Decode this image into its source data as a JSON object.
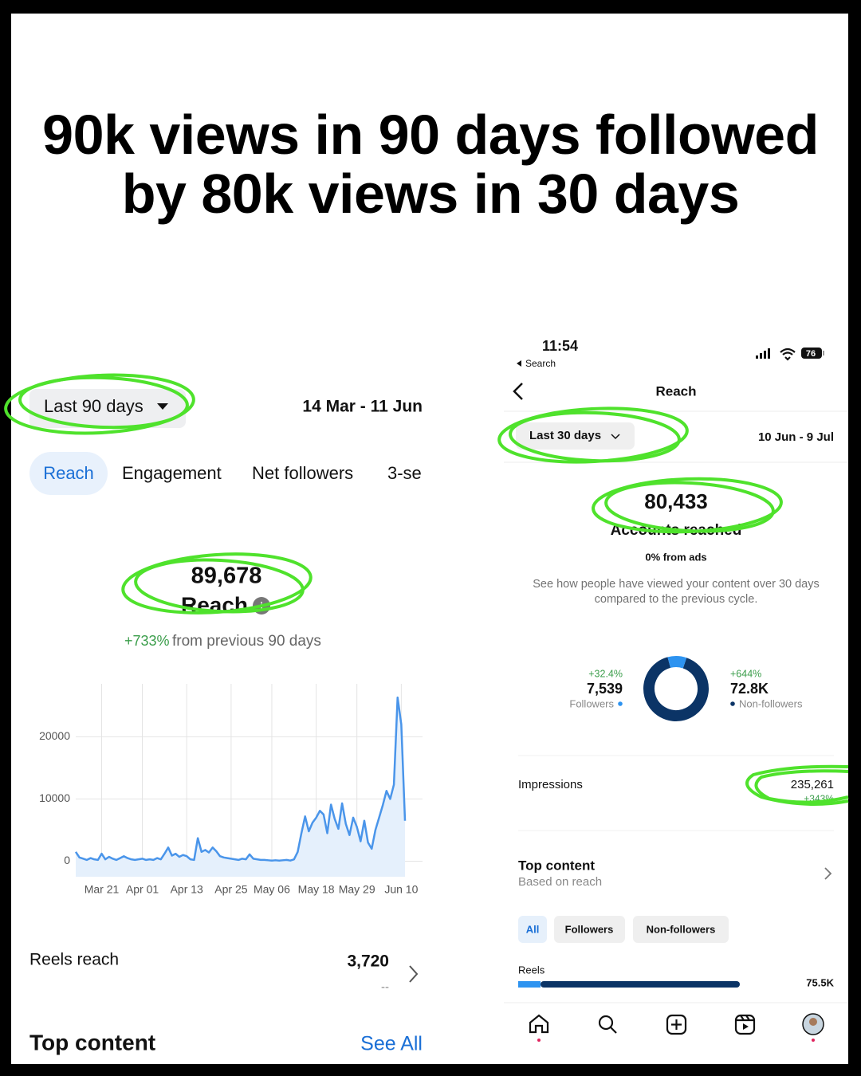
{
  "title": "90k views in 90 days followed by 80k views in 30 days",
  "left": {
    "range_button": "Last 90 days",
    "date_range": "14 Mar - 11 Jun",
    "tabs": [
      "Reach",
      "Engagement",
      "Net followers",
      "3-se"
    ],
    "reach_value": "89,678",
    "reach_label": "Reach",
    "change": "+733%",
    "change_text": "from previous 90 days",
    "reels_label": "Reels reach",
    "reels_value": "3,720",
    "reels_sub": "--",
    "top_content": "Top content",
    "see_all": "See All"
  },
  "chart_data": {
    "type": "area-line",
    "color": "#4a95ea",
    "fill": "#e5f0fc",
    "grid": true,
    "categories": [
      null,
      null,
      null,
      null,
      null,
      null,
      null,
      "Mar 21",
      null,
      null,
      null,
      null,
      null,
      null,
      null,
      null,
      null,
      null,
      "Apr 01",
      null,
      null,
      null,
      null,
      null,
      null,
      null,
      null,
      null,
      null,
      null,
      "Apr 13",
      null,
      null,
      null,
      null,
      null,
      null,
      null,
      null,
      null,
      null,
      null,
      "Apr 25",
      null,
      null,
      null,
      null,
      null,
      null,
      null,
      null,
      null,
      null,
      "May 06",
      null,
      null,
      null,
      null,
      null,
      null,
      null,
      null,
      null,
      null,
      null,
      "May 18",
      null,
      null,
      null,
      null,
      null,
      null,
      null,
      null,
      null,
      null,
      "May 29",
      null,
      null,
      null,
      null,
      null,
      null,
      null,
      null,
      null,
      null,
      null,
      "Jun 10",
      null
    ],
    "values": [
      1500,
      600,
      400,
      200,
      500,
      300,
      200,
      1200,
      300,
      700,
      400,
      200,
      500,
      800,
      500,
      300,
      200,
      300,
      400,
      200,
      300,
      200,
      500,
      300,
      1200,
      2200,
      900,
      1200,
      700,
      1000,
      800,
      300,
      200,
      3700,
      1500,
      1800,
      1400,
      2200,
      1600,
      800,
      600,
      500,
      400,
      300,
      200,
      400,
      300,
      1100,
      400,
      300,
      200,
      200,
      150,
      100,
      150,
      100,
      150,
      200,
      100,
      300,
      1500,
      4500,
      7200,
      4800,
      6200,
      7000,
      8100,
      7500,
      4500,
      9100,
      6800,
      5200,
      9300,
      6000,
      4200,
      7000,
      5500,
      3200,
      6500,
      3000,
      2000,
      5000,
      7000,
      9000,
      11300,
      10000,
      12300,
      26300,
      22000,
      6500
    ],
    "ylim": [
      -2500,
      28500
    ],
    "yticks": [
      0,
      10000,
      20000
    ]
  },
  "right": {
    "time": "11:54",
    "back_app": "Search",
    "battery": "76",
    "header": "Reach",
    "range_button": "Last 30 days",
    "date_range": "10 Jun - 9 Jul",
    "accounts_value": "80,433",
    "accounts_label": "Accounts reached",
    "ads": "0% from ads",
    "description": "See how people have viewed your content over 30 days compared to the previous cycle.",
    "donut": {
      "followers_color": "#2d93f0",
      "non_followers_color": "#0b3466",
      "followers": {
        "value": 7539,
        "label": "7,539"
      },
      "followers_change": "+32.4%",
      "followers_label": "Followers",
      "non_followers": {
        "value": 72800,
        "label": "72.8K"
      },
      "non_followers_change": "+644%",
      "non_followers_label": "Non-followers"
    },
    "impressions_label": "Impressions",
    "impressions_value": "235,261",
    "impressions_change": "+343%",
    "top_content": "Top content",
    "top_content_sub": "Based on reach",
    "chips": [
      "All",
      "Followers",
      "Non-followers"
    ],
    "reels_label": "Reels",
    "reels_value": "75.5K"
  }
}
